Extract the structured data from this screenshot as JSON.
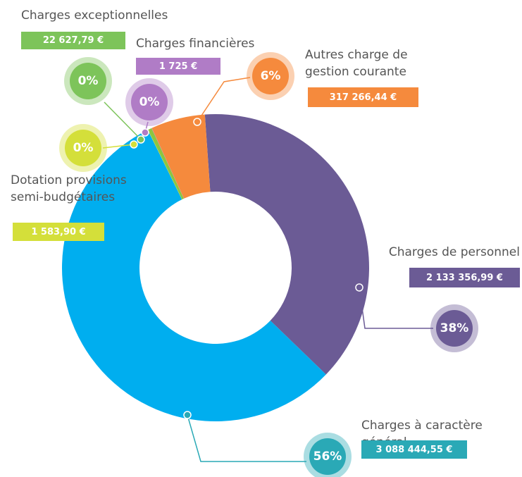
{
  "chart_data": {
    "type": "donut",
    "categories": [
      "Charges de personnel",
      "Charges à caractère général",
      "Dotation provisions semi-budgétaires",
      "Charges exceptionnelles",
      "Charges financières",
      "Autres charge de gestion courante"
    ],
    "values": [
      2133356.99,
      3088444.55,
      1583.9,
      22627.79,
      1725,
      317266.44
    ],
    "value_labels": [
      "2 133 356,99 €",
      "3 088 444,55 €",
      "1 583,90 €",
      "22 627,79 €",
      "1 725 €",
      "317 266,44 €"
    ],
    "shares": [
      38,
      56,
      0,
      0,
      0,
      6
    ],
    "share_labels": [
      "38%",
      "56%",
      "0%",
      "0%",
      "0%",
      "6%"
    ],
    "colors": [
      "#6b5b95",
      "#00aeef",
      "#d4df3a",
      "#8dc63f",
      "#b07cc6",
      "#f58a3d"
    ],
    "label_colors": [
      "#6b5b95",
      "#2aa9b6",
      "#d4df3a",
      "#7dc45a",
      "#b07cc6",
      "#f58a3d"
    ]
  }
}
